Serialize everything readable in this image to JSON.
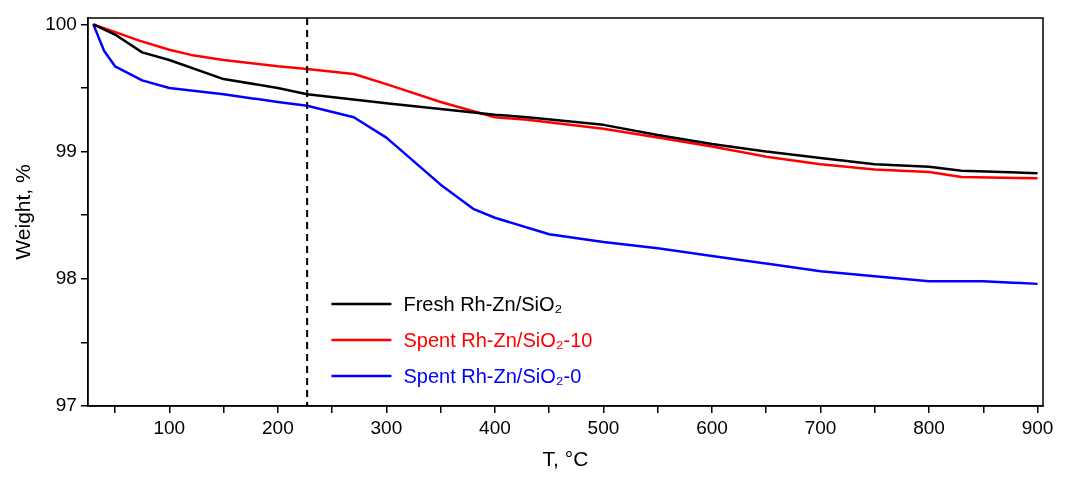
{
  "chart_data": {
    "type": "line",
    "xlabel": "T, °C",
    "ylabel": "Weight, %",
    "xlim": [
      25,
      905
    ],
    "ylim": [
      97,
      100.05
    ],
    "xticks": [
      {
        "value": 50,
        "label": null
      },
      100,
      {
        "value": 150,
        "label": null
      },
      200,
      {
        "value": 250,
        "label": null
      },
      300,
      {
        "value": 350,
        "label": null
      },
      400,
      {
        "value": 450,
        "label": null
      },
      500,
      {
        "value": 550,
        "label": null
      },
      600,
      {
        "value": 650,
        "label": null
      },
      700,
      {
        "value": 750,
        "label": null
      },
      800,
      {
        "value": 850,
        "label": null
      },
      900
    ],
    "yticks": [
      97,
      {
        "value": 97.5,
        "label": null
      },
      98,
      {
        "value": 98.5,
        "label": null
      },
      99,
      {
        "value": 99.5,
        "label": null
      },
      100
    ],
    "grid": false,
    "legend": "bottom left",
    "marker": "none",
    "line_style": "solid",
    "ref_lines": [
      {
        "axis": "x",
        "value": 227,
        "color": "#000000",
        "line_style": "dashed"
      }
    ],
    "series": [
      {
        "name": "Fresh Rh-Zn/SiO₂",
        "color": "#000000",
        "x": [
          30,
          50,
          75,
          100,
          150,
          200,
          227,
          300,
          400,
          430,
          500,
          550,
          600,
          650,
          700,
          750,
          800,
          830,
          900
        ],
        "values": [
          100.0,
          99.92,
          99.78,
          99.72,
          99.57,
          99.5,
          99.45,
          99.38,
          99.29,
          99.27,
          99.21,
          99.13,
          99.06,
          99.0,
          98.95,
          98.9,
          98.88,
          98.85,
          98.83
        ]
      },
      {
        "name": "Spent Rh-Zn/SiO₂-10",
        "color": "#ff0000",
        "x": [
          30,
          73,
          100,
          120,
          150,
          200,
          227,
          270,
          300,
          350,
          400,
          430,
          500,
          550,
          600,
          650,
          700,
          750,
          800,
          830,
          900
        ],
        "values": [
          100.0,
          99.87,
          99.8,
          99.76,
          99.72,
          99.67,
          99.65,
          99.61,
          99.53,
          99.39,
          99.27,
          99.25,
          99.18,
          99.11,
          99.04,
          98.96,
          98.9,
          98.86,
          98.84,
          98.8,
          98.79
        ]
      },
      {
        "name": "Spent Rh-Zn/SiO₂-0",
        "color": "#0000ff",
        "x": [
          30,
          40,
          50,
          75,
          100,
          150,
          200,
          227,
          270,
          300,
          350,
          380,
          400,
          450,
          500,
          550,
          600,
          650,
          700,
          750,
          800,
          850,
          900
        ],
        "values": [
          100.0,
          99.79,
          99.67,
          99.56,
          99.5,
          99.45,
          99.39,
          99.36,
          99.27,
          99.11,
          98.74,
          98.55,
          98.48,
          98.35,
          98.29,
          98.24,
          98.18,
          98.12,
          98.06,
          98.02,
          97.98,
          97.98,
          97.96
        ]
      }
    ]
  }
}
